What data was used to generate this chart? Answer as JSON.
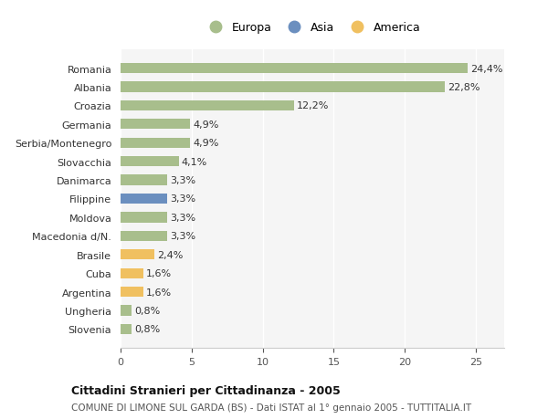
{
  "categories": [
    "Romania",
    "Albania",
    "Croazia",
    "Germania",
    "Serbia/Montenegro",
    "Slovacchia",
    "Danimarca",
    "Filippine",
    "Moldova",
    "Macedonia d/N.",
    "Brasile",
    "Cuba",
    "Argentina",
    "Ungheria",
    "Slovenia"
  ],
  "values": [
    24.4,
    22.8,
    12.2,
    4.9,
    4.9,
    4.1,
    3.3,
    3.3,
    3.3,
    3.3,
    2.4,
    1.6,
    1.6,
    0.8,
    0.8
  ],
  "labels": [
    "24,4%",
    "22,8%",
    "12,2%",
    "4,9%",
    "4,9%",
    "4,1%",
    "3,3%",
    "3,3%",
    "3,3%",
    "3,3%",
    "2,4%",
    "1,6%",
    "1,6%",
    "0,8%",
    "0,8%"
  ],
  "continent": [
    "Europa",
    "Europa",
    "Europa",
    "Europa",
    "Europa",
    "Europa",
    "Europa",
    "Asia",
    "Europa",
    "Europa",
    "America",
    "America",
    "America",
    "Europa",
    "Europa"
  ],
  "color_europa": "#a8be8c",
  "color_asia": "#6b8fbf",
  "color_america": "#f0c060",
  "bg_color": "#ffffff",
  "plot_bg_color": "#f5f5f5",
  "grid_color": "#ffffff",
  "title_bold": "Cittadini Stranieri per Cittadinanza - 2005",
  "subtitle": "COMUNE DI LIMONE SUL GARDA (BS) - Dati ISTAT al 1° gennaio 2005 - TUTTITALIA.IT",
  "legend_europa": "Europa",
  "legend_asia": "Asia",
  "legend_america": "America",
  "xlim": [
    0,
    27
  ],
  "xticks": [
    0,
    5,
    10,
    15,
    20,
    25
  ]
}
